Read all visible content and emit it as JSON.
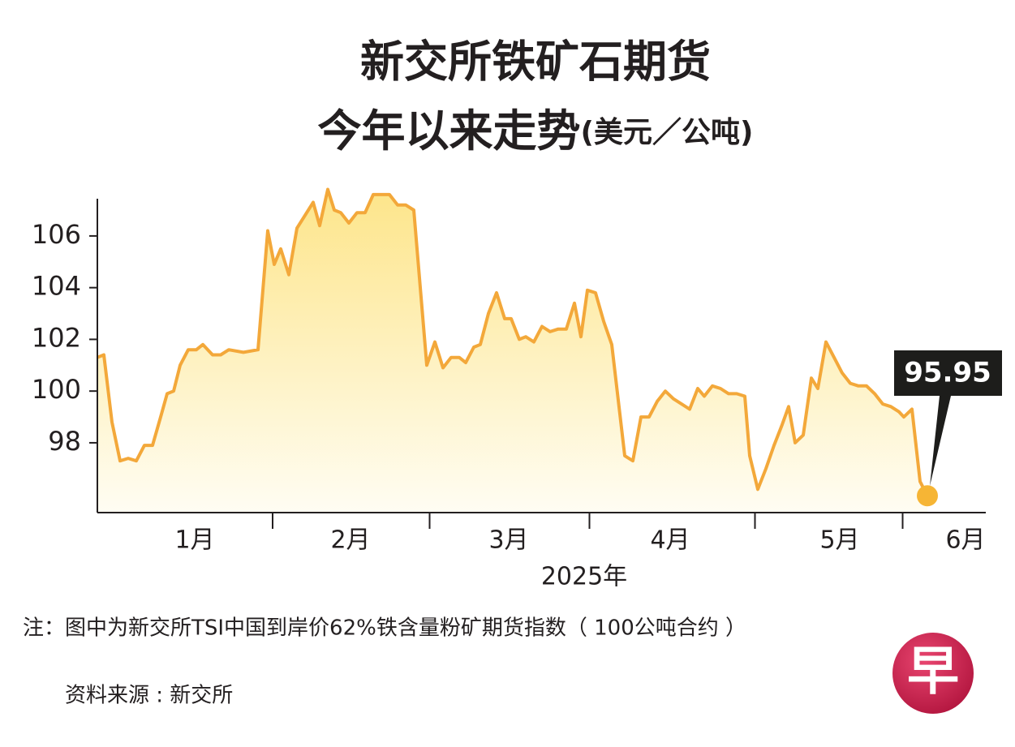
{
  "chart_data": {
    "type": "area-line",
    "title": "新交所铁矿石期货",
    "subtitle": "今年以来走势",
    "unit": "(美元／公吨)",
    "x_label": "2025年",
    "note": "注：图中为新交所TSI中国到岸价62%铁含量粉矿期货指数（ 100公吨合约 ）",
    "source": "资料来源 : 新交所",
    "logo": "早",
    "annotation": "95.95",
    "color": "#f3a83a",
    "xlim": [
      0,
      109.5
    ],
    "ylim": [
      95.3,
      107.44
    ],
    "yticks": [
      98,
      100,
      102,
      104,
      106
    ],
    "xticks": [
      {
        "value": 12,
        "label": "1月"
      },
      {
        "value": 31.2,
        "label": "2月"
      },
      {
        "value": 50.7,
        "label": "3月"
      },
      {
        "value": 70.6,
        "label": "4月"
      },
      {
        "value": 91.5,
        "label": "5月"
      },
      {
        "value": 107,
        "label": "6月"
      }
    ],
    "x": [
      0,
      0.8,
      1.8,
      2.8,
      3.8,
      4.8,
      5.8,
      6.8,
      7.8,
      8.6,
      9.4,
      10.2,
      11.2,
      12.2,
      13,
      14.2,
      15.2,
      16.2,
      18,
      19.8,
      21,
      21.8,
      22.6,
      23.6,
      24.6,
      25.6,
      26.6,
      27.4,
      28.4,
      29.2,
      30,
      31,
      32,
      33,
      34,
      35,
      36,
      37,
      38,
      39,
      40.6,
      41.6,
      42.6,
      43.6,
      44.6,
      45.4,
      46.4,
      47.2,
      48.2,
      49.2,
      50.2,
      51,
      52,
      52.8,
      53.8,
      54.8,
      55.8,
      56.8,
      57.8,
      58.8,
      59.6,
      60.4,
      61.4,
      62.4,
      63.4,
      65,
      66,
      67,
      68,
      69,
      70,
      71,
      72,
      73,
      74,
      74.8,
      75.8,
      76.8,
      77.8,
      78.8,
      79.8,
      80.4,
      81.4,
      82.4,
      83.4,
      84.4,
      85.2,
      86,
      87,
      88,
      88.8,
      89.8,
      90.8,
      91.8,
      92.8,
      93.8,
      94.8,
      95.8,
      96.8,
      97.8,
      98.8,
      99.4,
      100.4,
      101.4,
      102.3
    ],
    "values": [
      101.3,
      101.4,
      98.8,
      97.3,
      97.4,
      97.3,
      97.9,
      97.9,
      99.0,
      99.9,
      100.0,
      101.0,
      101.6,
      101.6,
      101.8,
      101.4,
      101.4,
      101.6,
      101.5,
      101.6,
      106.2,
      104.9,
      105.5,
      104.5,
      106.3,
      106.8,
      107.3,
      106.4,
      107.8,
      107.0,
      106.9,
      106.5,
      106.9,
      106.9,
      107.6,
      107.6,
      107.6,
      107.2,
      107.2,
      107.0,
      101.0,
      101.9,
      100.9,
      101.3,
      101.3,
      101.1,
      101.7,
      101.8,
      103.0,
      103.8,
      102.8,
      102.8,
      102.0,
      102.1,
      101.9,
      102.5,
      102.3,
      102.4,
      102.4,
      103.4,
      102.1,
      103.9,
      103.8,
      102.7,
      101.8,
      97.5,
      97.3,
      99.0,
      99.0,
      99.6,
      100.0,
      99.7,
      99.5,
      99.3,
      100.1,
      99.8,
      100.2,
      100.1,
      99.9,
      99.9,
      99.8,
      97.5,
      96.2,
      97.0,
      97.9,
      98.7,
      99.4,
      98.0,
      98.3,
      100.5,
      100.1,
      101.9,
      101.3,
      100.7,
      100.3,
      100.2,
      100.2,
      99.9,
      99.5,
      99.4,
      99.2,
      99.0,
      99.3,
      96.5,
      95.95
    ]
  }
}
